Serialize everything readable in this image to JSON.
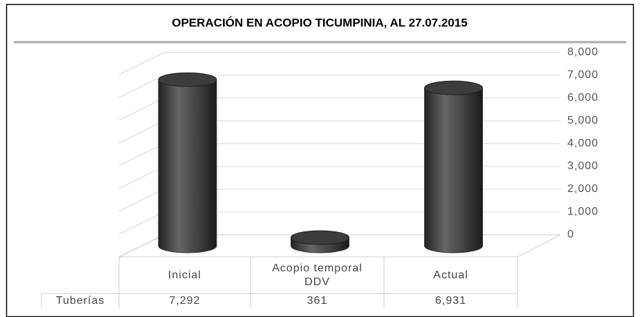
{
  "chart_data": {
    "type": "bar",
    "title": "OPERACIÓN EN ACOPIO TICUMPINIA, AL 27.07.2015",
    "categories": [
      "Inicial",
      "Acopio temporal DDV",
      "Actual"
    ],
    "series": [
      {
        "name": "Tuberías",
        "color": "#3c3c3c",
        "values": [
          7292,
          361,
          6931
        ],
        "value_labels": [
          "7,292",
          "361",
          "6,931"
        ]
      }
    ],
    "ylim": [
      0,
      8000
    ],
    "yticks": [
      0,
      {
        "value": 1000,
        "label": "1,000"
      },
      {
        "value": 2000,
        "label": "2,000"
      },
      {
        "value": 3000,
        "label": "3,000"
      },
      {
        "value": 4000,
        "label": "4,000"
      },
      {
        "value": 5000,
        "label": "5,000"
      },
      {
        "value": 6000,
        "label": "6,000"
      },
      {
        "value": 7000,
        "label": "7,000"
      },
      {
        "value": 8000,
        "label": "8,000"
      }
    ],
    "grid": true
  }
}
